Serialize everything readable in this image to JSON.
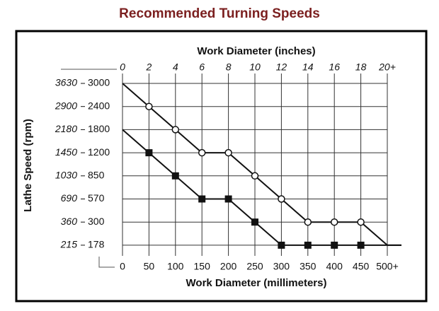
{
  "chart_data": {
    "type": "line",
    "title": "Recommended Turning Speeds",
    "x2_label": "Work Diameter (inches)",
    "x_label": "Work Diameter (millimeters)",
    "y_label": "Lathe Speed (rpm)",
    "y_levels": [
      {
        "imperial": 3630,
        "metric": 3000
      },
      {
        "imperial": 2900,
        "metric": 2400
      },
      {
        "imperial": 2180,
        "metric": 1800
      },
      {
        "imperial": 1450,
        "metric": 1200
      },
      {
        "imperial": 1030,
        "metric": 850
      },
      {
        "imperial": 690,
        "metric": 570
      },
      {
        "imperial": 360,
        "metric": 300
      },
      {
        "imperial": 215,
        "metric": 178
      }
    ],
    "x2lim": [
      0,
      20
    ],
    "x2ticks": [
      0,
      2,
      4,
      6,
      8,
      10,
      12,
      14,
      16,
      18,
      {
        "value": 20,
        "label": "20+"
      }
    ],
    "xlim": [
      0,
      500
    ],
    "xticks": [
      0,
      50,
      100,
      150,
      200,
      250,
      300,
      350,
      400,
      450,
      {
        "value": 500,
        "label": "500+"
      }
    ],
    "grid": true,
    "series": [
      {
        "axis": "x2",
        "marker": "circle",
        "color": "#111111",
        "x": [
          0,
          2,
          4,
          6,
          8,
          10,
          12,
          14,
          16,
          18,
          20
        ],
        "values": [
          3630,
          2900,
          2180,
          1450,
          1450,
          1030,
          690,
          360,
          360,
          360,
          215
        ]
      },
      {
        "axis": "x",
        "marker": "square",
        "color": "#111111",
        "x": [
          0,
          50,
          100,
          150,
          200,
          250,
          300,
          350,
          400,
          450,
          500
        ],
        "values": [
          1800,
          1200,
          850,
          570,
          570,
          300,
          178,
          178,
          178,
          178,
          178
        ]
      }
    ]
  }
}
